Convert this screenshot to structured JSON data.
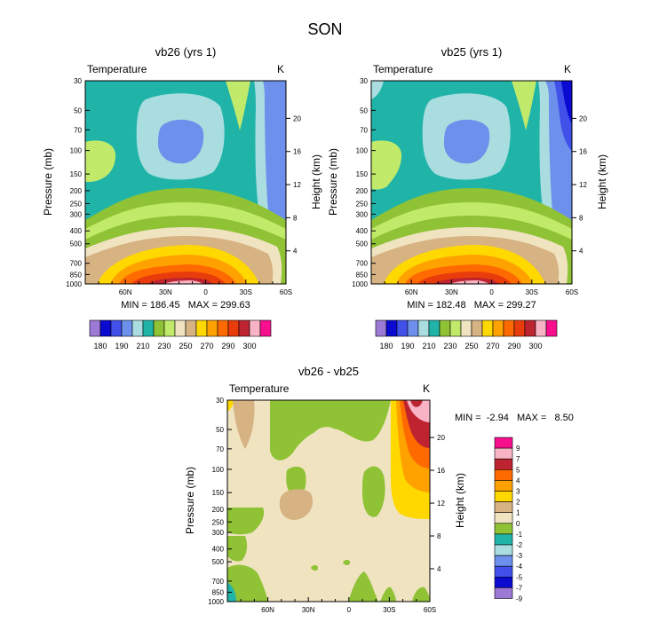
{
  "figure_title": "SON",
  "colors": {
    "ramp_abs": [
      "#9b79d5",
      "#0a0ad1",
      "#4050e8",
      "#6c90ec",
      "#a9dde0",
      "#20b4a9",
      "#8fc234",
      "#c2ea6a",
      "#efe3c0",
      "#d7b283",
      "#ffd800",
      "#ffa200",
      "#ff6a00",
      "#e83c0c",
      "#bd2430",
      "#f8b4c5",
      "#f70f8e"
    ],
    "ramp_diff": [
      "#9b79d5",
      "#0a0ad1",
      "#4050e8",
      "#6c90ec",
      "#a9dde0",
      "#20b4a9",
      "#8fc234",
      "#efe3c0",
      "#d7b283",
      "#ffd800",
      "#ffa200",
      "#ff6a00",
      "#bd2430",
      "#f8b4c5",
      "#f70f8e"
    ]
  },
  "chart_data": [
    {
      "id": "vb26",
      "type": "contour",
      "title": "vb26 (yrs 1)",
      "left_label": "Temperature",
      "right_label": "K",
      "ylabel": "Pressure (mb)",
      "ylabel_right": "Height (km)",
      "xlim_lat": [
        90,
        -60
      ],
      "ylim_pressure": [
        1000,
        30
      ],
      "x_ticks": [
        "60N",
        "30N",
        "0",
        "30S",
        "60S"
      ],
      "x_tick_values": [
        60,
        30,
        0,
        -30,
        -60
      ],
      "y_ticks": [
        "30",
        "50",
        "70",
        "100",
        "150",
        "200",
        "250",
        "300",
        "400",
        "500",
        "700",
        "850",
        "1000"
      ],
      "y_tick_values": [
        30,
        50,
        70,
        100,
        150,
        200,
        250,
        300,
        400,
        500,
        700,
        850,
        1000
      ],
      "height_ticks": [
        "20",
        "16",
        "12",
        "8",
        "4"
      ],
      "height_tick_values": [
        20,
        16,
        12,
        8,
        4
      ],
      "stats": "MIN = 186.45   MAX = 299.63",
      "min": 186.45,
      "max": 299.63,
      "levels": [
        180,
        185,
        190,
        200,
        210,
        220,
        230,
        240,
        250,
        260,
        270,
        280,
        285,
        290,
        295,
        300
      ],
      "levelbar_labels": [
        "180",
        "190",
        "210",
        "230",
        "250",
        "270",
        "290",
        "300"
      ]
    },
    {
      "id": "vb25",
      "type": "contour",
      "title": "vb25 (yrs 1)",
      "left_label": "Temperature",
      "right_label": "K",
      "ylabel": "Pressure (mb)",
      "ylabel_right": "Height (km)",
      "xlim_lat": [
        90,
        -60
      ],
      "ylim_pressure": [
        1000,
        30
      ],
      "x_ticks": [
        "60N",
        "30N",
        "0",
        "30S",
        "60S"
      ],
      "x_tick_values": [
        60,
        30,
        0,
        -30,
        -60
      ],
      "y_ticks": [
        "30",
        "50",
        "70",
        "100",
        "150",
        "200",
        "250",
        "300",
        "400",
        "500",
        "700",
        "850",
        "1000"
      ],
      "y_tick_values": [
        30,
        50,
        70,
        100,
        150,
        200,
        250,
        300,
        400,
        500,
        700,
        850,
        1000
      ],
      "height_ticks": [
        "20",
        "16",
        "12",
        "8",
        "4"
      ],
      "height_tick_values": [
        20,
        16,
        12,
        8,
        4
      ],
      "stats": "MIN = 182.48   MAX = 299.27",
      "min": 182.48,
      "max": 299.27,
      "levels": [
        180,
        185,
        190,
        200,
        210,
        220,
        230,
        240,
        250,
        260,
        270,
        280,
        285,
        290,
        295,
        300
      ],
      "levelbar_labels": [
        "180",
        "190",
        "210",
        "230",
        "250",
        "270",
        "290",
        "300"
      ]
    },
    {
      "id": "diff",
      "type": "contour",
      "title": "vb26 - vb25",
      "left_label": "Temperature",
      "right_label": "K",
      "ylabel": "Pressure (mb)",
      "ylabel_right": "Height (km)",
      "xlim_lat": [
        90,
        -60
      ],
      "ylim_pressure": [
        1000,
        30
      ],
      "x_ticks": [
        "60N",
        "30N",
        "0",
        "30S",
        "60S"
      ],
      "x_tick_values": [
        60,
        30,
        0,
        -30,
        -60
      ],
      "y_ticks": [
        "30",
        "50",
        "70",
        "100",
        "150",
        "200",
        "250",
        "300",
        "400",
        "500",
        "700",
        "850",
        "1000"
      ],
      "y_tick_values": [
        30,
        50,
        70,
        100,
        150,
        200,
        250,
        300,
        400,
        500,
        700,
        850,
        1000
      ],
      "height_ticks": [
        "20",
        "16",
        "12",
        "8",
        "4"
      ],
      "height_tick_values": [
        20,
        16,
        12,
        8,
        4
      ],
      "stats": "MIN =  -2.94   MAX =   8.50",
      "min": -2.94,
      "max": 8.5,
      "levels": [
        -9,
        -7,
        -5,
        -4,
        -3,
        -2,
        -1,
        0,
        1,
        2,
        3,
        4,
        5,
        7,
        9
      ],
      "levelbar_labels": [
        "9",
        "7",
        "5",
        "4",
        "3",
        "2",
        "1",
        "0",
        "-1",
        "-2",
        "-3",
        "-4",
        "-5",
        "-7",
        "-9"
      ]
    }
  ]
}
